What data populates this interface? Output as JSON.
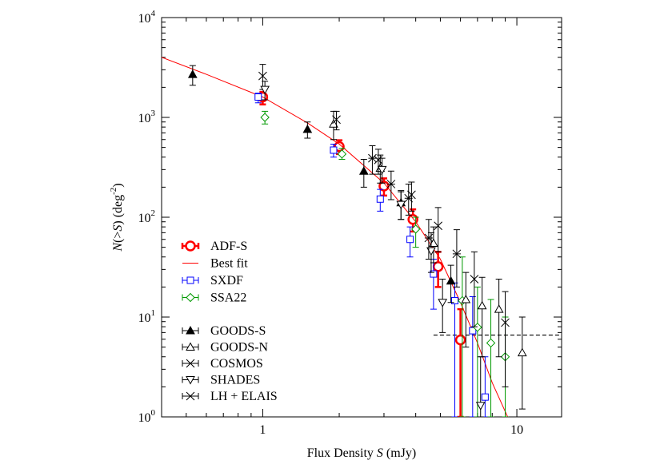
{
  "chart_data": {
    "type": "scatter",
    "x_label": [
      "Flux Density ",
      "S",
      "  (mJy)"
    ],
    "y_label": {
      "main": [
        "N",
        "(>",
        "S",
        ")  (deg"
      ],
      "sup": "-2",
      "end": ")"
    },
    "xscale": "log",
    "yscale": "log",
    "xlim": [
      0.4,
      15
    ],
    "ylim": [
      1,
      10000
    ],
    "xticks": [
      1,
      10
    ],
    "xminor_ticks": [
      0.4,
      0.5,
      0.6,
      0.7,
      0.8,
      0.9,
      2,
      3,
      4,
      5,
      6,
      7,
      8,
      9
    ],
    "yticks": [
      {
        "value": 1,
        "label": "10",
        "sup": "0"
      },
      {
        "value": 10,
        "label": "10",
        "sup": "1"
      },
      {
        "value": 100,
        "label": "10",
        "sup": "2"
      },
      {
        "value": 1000,
        "label": "10",
        "sup": "3"
      },
      {
        "value": 10000,
        "label": "10",
        "sup": "4"
      }
    ],
    "yminor_ticks": [
      2,
      3,
      4,
      5,
      6,
      7,
      8,
      9,
      20,
      30,
      40,
      50,
      60,
      70,
      80,
      90,
      200,
      300,
      400,
      500,
      600,
      700,
      800,
      900,
      2000,
      3000,
      4000,
      5000,
      6000,
      7000,
      8000,
      9000
    ],
    "hline": {
      "y": 6.6,
      "xmin": 4.7,
      "color": "#000000"
    },
    "legend": "left",
    "series": [
      {
        "name": "ADF-S",
        "color": "#ff0000",
        "marker": "circle",
        "width": 2.5,
        "x": [
          1.0,
          2.0,
          3.0,
          3.9,
          4.9,
          6.0
        ],
        "values": [
          1600,
          510,
          205,
          95,
          32,
          5.9
        ],
        "lower": [
          1350,
          430,
          165,
          72,
          20,
          1
        ],
        "upper": [
          1800,
          590,
          245,
          120,
          45,
          12
        ]
      },
      {
        "name": "Best fit",
        "color": "#ff0000",
        "marker": "line",
        "width": 1,
        "x": [
          0.4,
          0.6,
          1,
          1.5,
          2,
          3,
          4,
          5,
          6,
          7,
          8,
          9.2
        ],
        "values": [
          4000,
          2700,
          1600,
          880,
          540,
          220,
          90,
          38,
          14,
          5.5,
          2.2,
          1
        ]
      },
      {
        "name": "SXDF",
        "color": "#0000ff",
        "marker": "square",
        "width": 1,
        "x": [
          0.96,
          1.9,
          2.9,
          3.8,
          4.7,
          5.7,
          6.7,
          7.5
        ],
        "values": [
          1600,
          470,
          152,
          60,
          27,
          14.6,
          7.3,
          1.58
        ],
        "lower": [
          1400,
          400,
          115,
          40,
          12,
          1,
          1,
          1
        ],
        "upper": [
          1750,
          540,
          190,
          80,
          38,
          22,
          16,
          4
        ]
      },
      {
        "name": "SSA22",
        "color": "#009900",
        "marker": "diamond",
        "width": 1,
        "x": [
          1.02,
          2.05,
          4.0,
          6.1,
          7.0,
          7.9,
          9.0
        ],
        "values": [
          1000,
          430,
          76,
          14.6,
          7.9,
          5.5,
          4.0
        ],
        "lower": [
          860,
          380,
          50,
          1,
          1,
          1,
          1
        ],
        "upper": [
          1150,
          490,
          100,
          40,
          20,
          15,
          10
        ]
      },
      {
        "name": "GOODS-S",
        "color": "#000000",
        "marker": "triangle-filled",
        "width": 1,
        "x": [
          0.53,
          1.5,
          2.5,
          3.5,
          5.5
        ],
        "values": [
          2700,
          760,
          290,
          140,
          23
        ],
        "lower": [
          2100,
          620,
          200,
          95,
          14
        ],
        "upper": [
          3300,
          900,
          380,
          185,
          33
        ]
      },
      {
        "name": "GOODS-N",
        "color": "#000000",
        "marker": "triangle",
        "width": 1,
        "x": [
          1.9,
          2.9,
          4.7,
          6.3,
          7.3,
          8.5,
          10.5
        ],
        "values": [
          860,
          310,
          55,
          15,
          13,
          12,
          4.4
        ],
        "lower": [
          600,
          220,
          35,
          5,
          4,
          4,
          1.2
        ],
        "upper": [
          1150,
          420,
          80,
          28,
          25,
          24,
          10
        ]
      },
      {
        "name": "COSMOS",
        "color": "#000000",
        "marker": "cross",
        "width": 1,
        "x": [
          1.0,
          1.95,
          2.85,
          3.85,
          4.9,
          6.8,
          9.0
        ],
        "values": [
          2600,
          950,
          375,
          168,
          82,
          24,
          8.8
        ],
        "lower": [
          1900,
          750,
          270,
          115,
          45,
          8,
          2
        ],
        "upper": [
          3400,
          1150,
          480,
          225,
          125,
          45,
          18
        ]
      },
      {
        "name": "SHADES",
        "color": "#000000",
        "marker": "triangle-down",
        "width": 1,
        "x": [
          1.02,
          2.95,
          3.5,
          4.6,
          5.1,
          7.2
        ],
        "values": [
          1900,
          300,
          134,
          46,
          14,
          1.3
        ],
        "lower": [
          1500,
          220,
          95,
          28,
          7,
          1
        ],
        "upper": [
          2300,
          390,
          180,
          70,
          24,
          4
        ]
      },
      {
        "name": "LH + ELAIS",
        "color": "#000000",
        "marker": "asterisk",
        "width": 1,
        "x": [
          2.7,
          3.2,
          3.75,
          4.5,
          5.8
        ],
        "values": [
          390,
          215,
          155,
          62,
          43
        ],
        "lower": [
          270,
          150,
          105,
          38,
          20
        ],
        "upper": [
          520,
          290,
          215,
          95,
          75
        ]
      }
    ]
  }
}
